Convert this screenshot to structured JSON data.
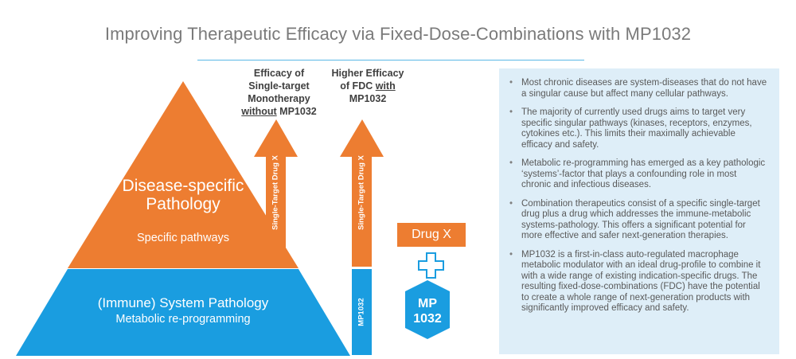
{
  "title": "Improving Therapeutic Efficacy via Fixed-Dose-Combinations with MP1032",
  "columns": {
    "monotherapy": {
      "line1": "Efficacy of",
      "line2": "Single-target",
      "line3": "Monotherapy",
      "line4_underlined": "without",
      "line4_rest": " MP1032"
    },
    "fdc": {
      "line1": "Higher Efficacy",
      "line2_prefix": "of FDC ",
      "line2_underlined": "with",
      "line3": "MP1032"
    }
  },
  "pyramid": {
    "top": {
      "title": "Disease-specific Pathology",
      "subtitle": "Specific pathways"
    },
    "base": {
      "title": "(Immune) System Pathology",
      "subtitle": "Metabolic re-programming"
    }
  },
  "arrow_labels": {
    "arrow1": "Single-Target Drug X",
    "arrow2": "Single-Target Drug X",
    "bar": "MP1032"
  },
  "drug_box": "Drug X",
  "plus_symbol": "+",
  "mp_hexagon": {
    "line1": "MP",
    "line2": "1032"
  },
  "bullets": [
    "Most chronic diseases are system-diseases that do not have a singular cause but affect many cellular pathways.",
    "The majority of currently used drugs aims to target very specific singular pathways (kinases, receptors, enzymes, cytokines etc.). This limits their maximally achievable efficacy and safety.",
    "Metabolic re-programming has emerged as a key pathologic ‘systems’-factor that plays a confounding role in most chronic and infectious diseases.",
    "Combination therapeutics consist of a specific single-target drug plus a drug which addresses the immune-metabolic systems-pathology. This offers a significant potential for more effective and safer next-generation therapies.",
    "MP1032 is a first-in-class auto-regulated macrophage metabolic modulator with an ideal drug-profile to combine it with a wide range of existing indication-specific drugs. The resulting fixed-dose-combinations (FDC) have the potential to create a whole range of next-generation products with significantly improved efficacy and safety."
  ],
  "colors": {
    "orange": "#ed7d31",
    "blue": "#1a9de0",
    "panel": "#deeef8",
    "title_gray": "#7a7a7a",
    "rule": "#5bb8e6"
  }
}
